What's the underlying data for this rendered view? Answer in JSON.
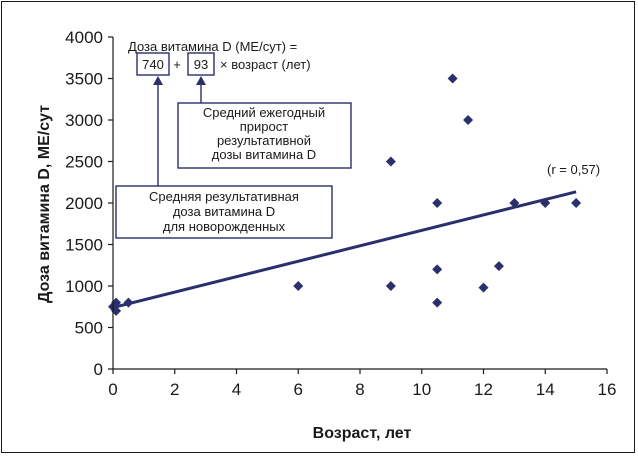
{
  "chart_data": {
    "type": "scatter",
    "title": "",
    "xlabel": "Возраст, лет",
    "ylabel": "Доза витамина D, МЕ/сут",
    "xlim": [
      0,
      16
    ],
    "ylim": [
      0,
      4000
    ],
    "x_ticks": [
      "0",
      "2",
      "4",
      "6",
      "8",
      "10",
      "12",
      "14",
      "16"
    ],
    "y_ticks": [
      "0",
      "500",
      "1000",
      "1500",
      "2000",
      "2500",
      "3000",
      "3500",
      "4000"
    ],
    "grid": false,
    "marker_color": "#2b2f6b",
    "line_color": "#2b2f6b",
    "points": [
      {
        "x": 0,
        "y": 750
      },
      {
        "x": 0.1,
        "y": 700
      },
      {
        "x": 0.1,
        "y": 800
      },
      {
        "x": 0.5,
        "y": 800
      },
      {
        "x": 6,
        "y": 1000
      },
      {
        "x": 9,
        "y": 2500
      },
      {
        "x": 9,
        "y": 1000
      },
      {
        "x": 10.5,
        "y": 2000
      },
      {
        "x": 10.5,
        "y": 1200
      },
      {
        "x": 10.5,
        "y": 800
      },
      {
        "x": 11,
        "y": 3500
      },
      {
        "x": 11.5,
        "y": 3000
      },
      {
        "x": 12,
        "y": 980
      },
      {
        "x": 12.5,
        "y": 1240
      },
      {
        "x": 13,
        "y": 2000
      },
      {
        "x": 14,
        "y": 2000
      },
      {
        "x": 15,
        "y": 2000
      }
    ],
    "regression": {
      "intercept": 740,
      "slope": 93,
      "x_from": 0,
      "x_to": 15
    },
    "correlation_label": "(r = 0,57)",
    "annotations": {
      "formula_line1": "Доза витамина D (МЕ/сут) =",
      "intercept_value": "740",
      "plus": "+",
      "slope_value": "93",
      "formula_rest": "× возраст (лет)",
      "slope_note": [
        "Средний ежегодный",
        "прирост",
        "результативной",
        "дозы витамина D"
      ],
      "intercept_note": [
        "Средняя результативная",
        "доза витамина D",
        "для новорожденных"
      ]
    }
  }
}
